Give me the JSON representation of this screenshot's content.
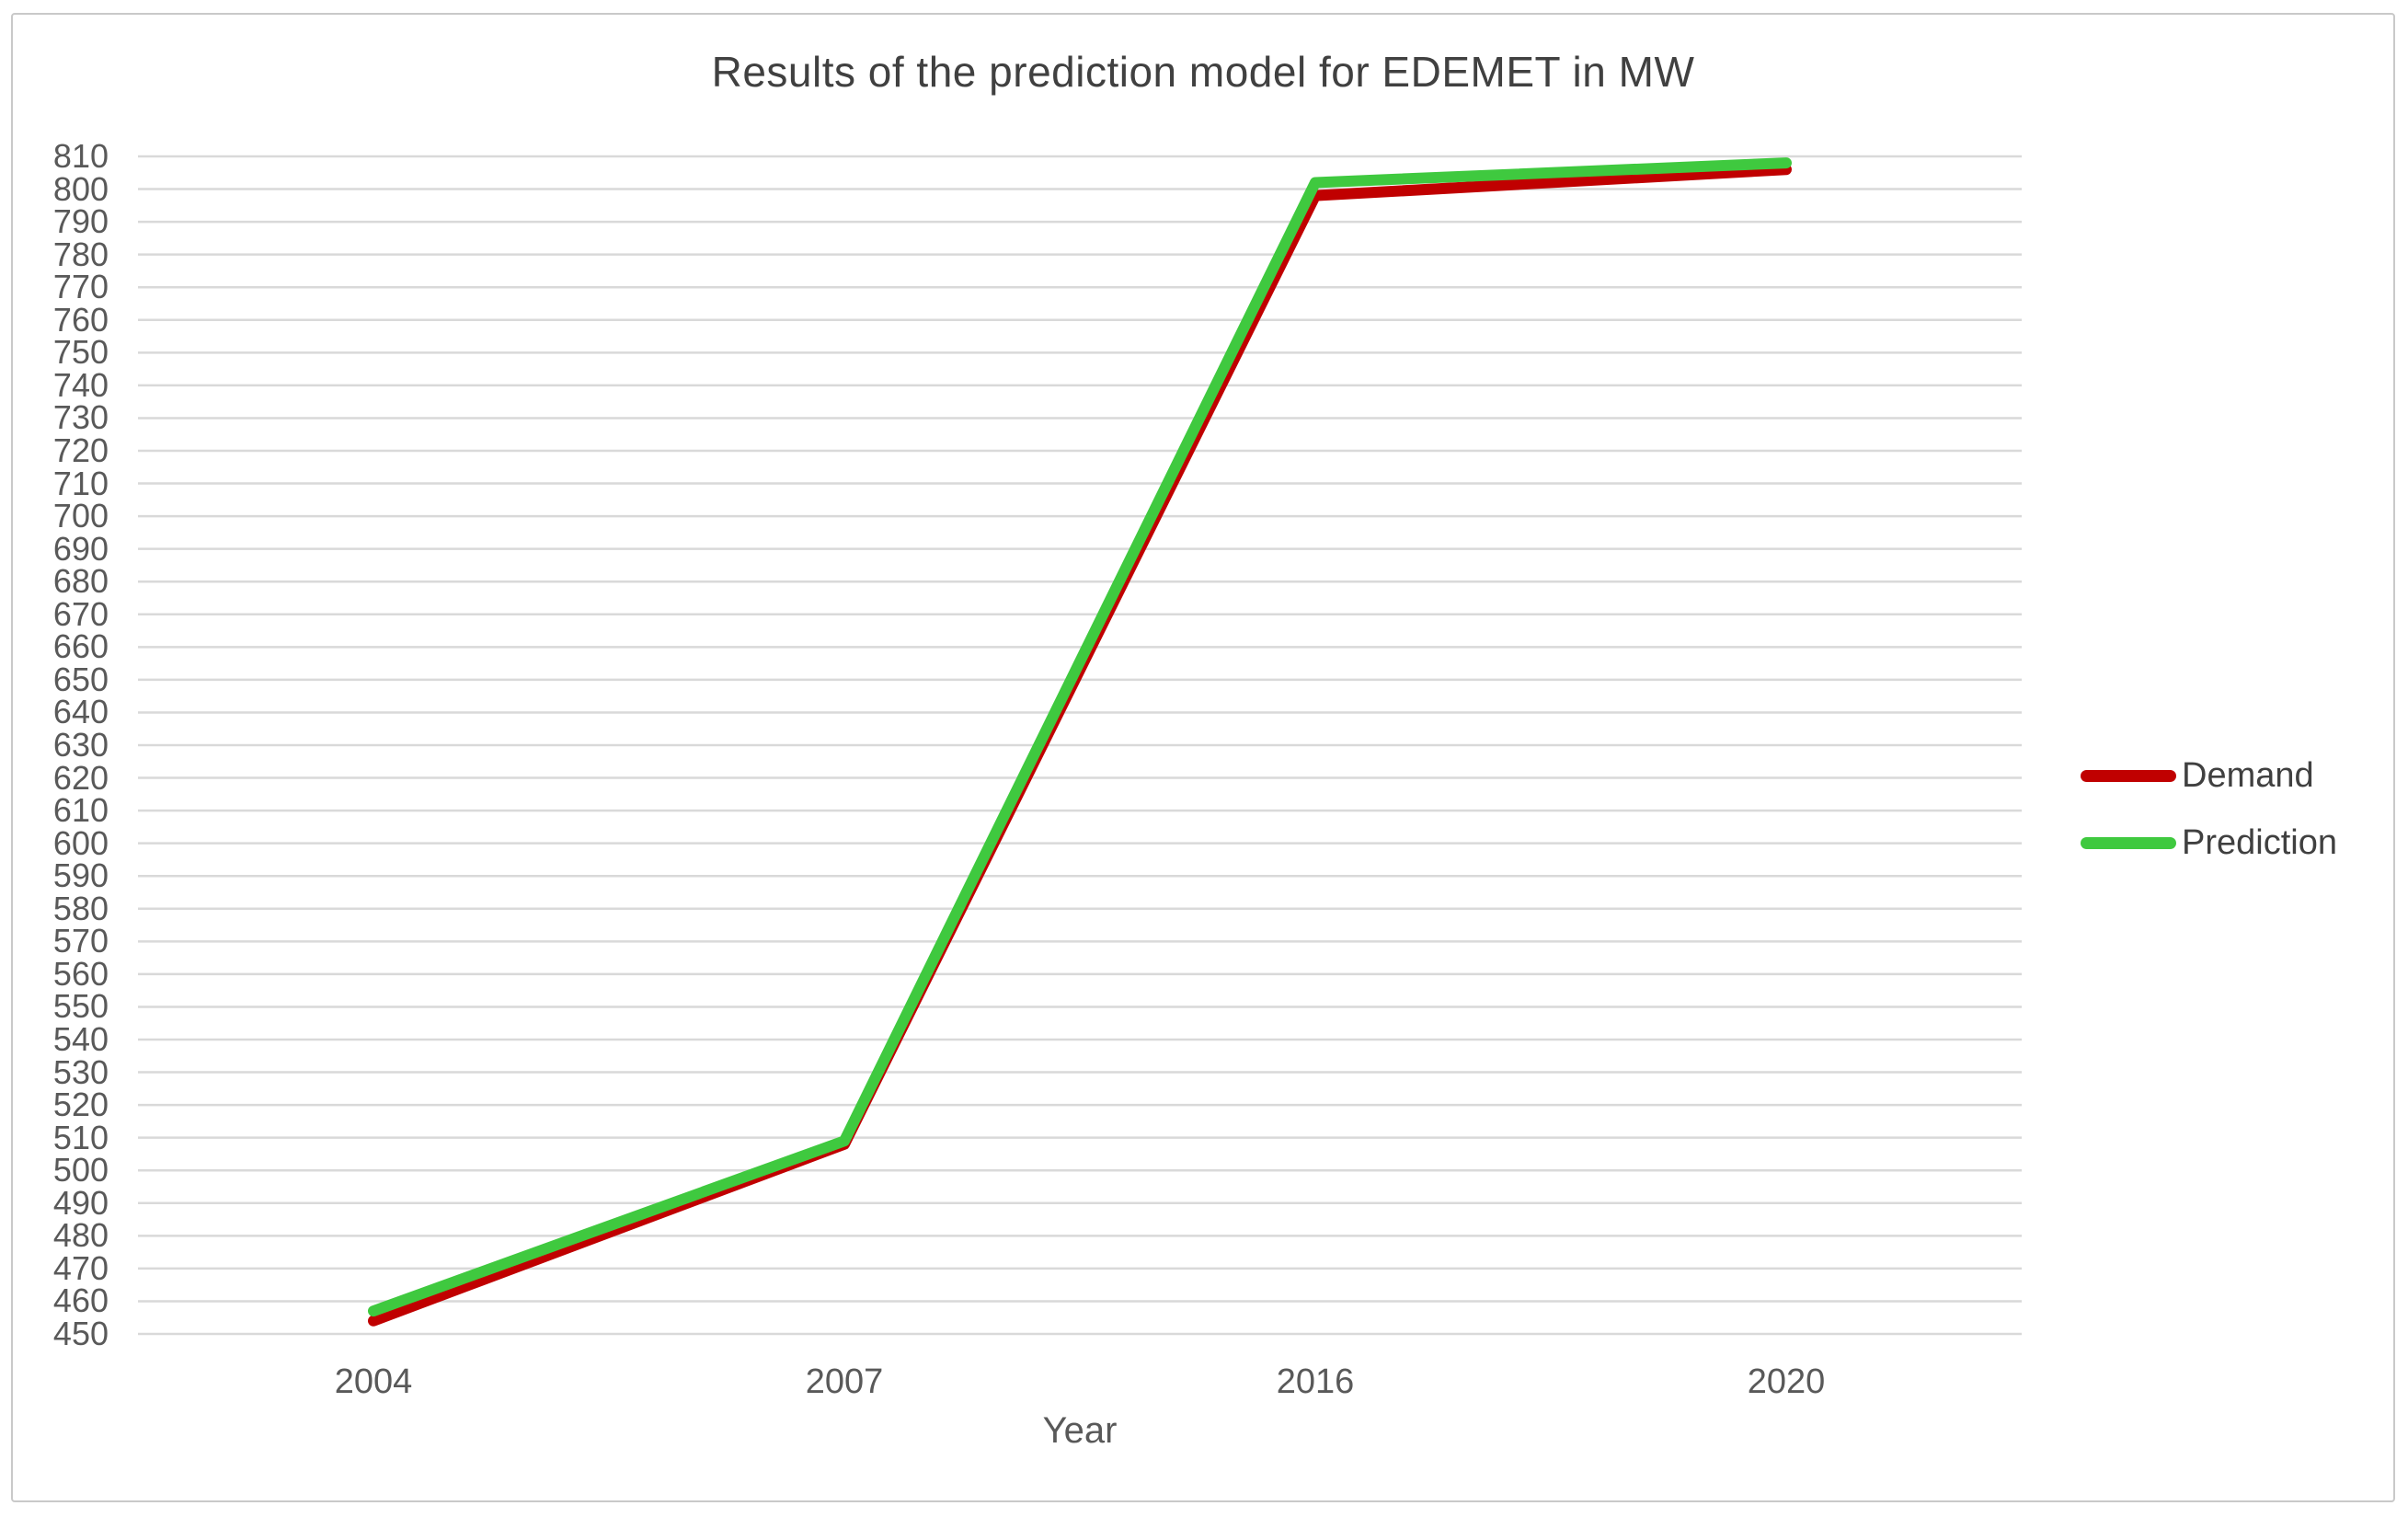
{
  "card": {
    "background": "#FFFFFF",
    "border_color": "#C9C9C9"
  },
  "chart_data": {
    "type": "line",
    "title": "Results of the prediction model for EDEMET in MW",
    "xlabel": "Year",
    "ylabel": "",
    "categories": [
      "2004",
      "2007",
      "2016",
      "2020"
    ],
    "series": [
      {
        "name": "Demand",
        "color": "#C00000",
        "values": [
          454,
          508,
          798,
          806
        ]
      },
      {
        "name": "Prediction",
        "color": "#3FC93F",
        "values": [
          457,
          509,
          802,
          808
        ]
      }
    ],
    "ylim": [
      450,
      810
    ],
    "y_tick_step": 10,
    "y_ticks": [
      810,
      800,
      790,
      780,
      770,
      760,
      750,
      740,
      730,
      720,
      710,
      700,
      690,
      680,
      670,
      660,
      650,
      640,
      630,
      620,
      610,
      600,
      590,
      580,
      570,
      560,
      550,
      540,
      530,
      520,
      510,
      500,
      490,
      480,
      470,
      460,
      450
    ],
    "grid": "horizontal",
    "gridline_color": "#D9D9D9",
    "legend_position": "right",
    "line_width": 12,
    "axis_label_color": "#595959",
    "title_color": "#404040"
  }
}
